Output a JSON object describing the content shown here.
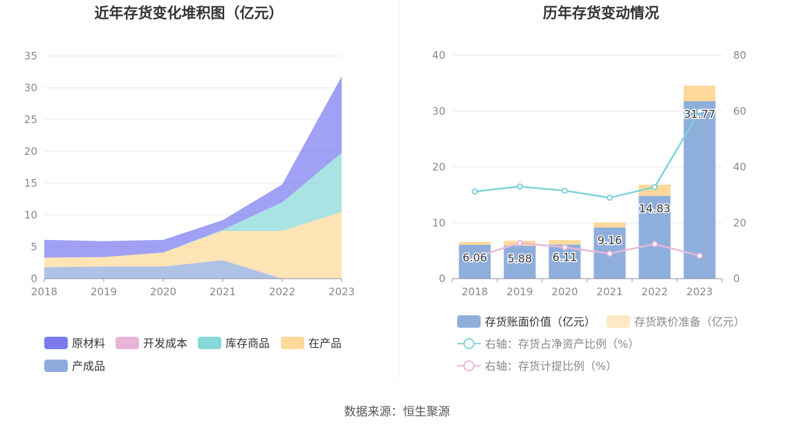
{
  "source_text": "数据来源：恒生聚源",
  "chart_data": [
    {
      "type": "area",
      "stacked": true,
      "title": "近年存货变化堆积图（亿元）",
      "x": [
        "2018",
        "2019",
        "2020",
        "2021",
        "2022",
        "2023"
      ],
      "ylim": [
        0,
        35
      ],
      "yticks": [
        "0",
        "5",
        "10",
        "15",
        "20",
        "25",
        "30",
        "35"
      ],
      "grid": true,
      "legend_position": "bottom",
      "series": [
        {
          "name": "产成品",
          "color": "#8faadc",
          "values": [
            1.8,
            1.9,
            1.9,
            2.9,
            0.0,
            0.0
          ]
        },
        {
          "name": "在产品",
          "color": "#ffd99a",
          "values": [
            1.5,
            1.5,
            2.2,
            4.6,
            7.5,
            10.5
          ]
        },
        {
          "name": "库存商品",
          "color": "#88d8d8",
          "values": [
            0.0,
            0.0,
            0.0,
            0.2,
            4.5,
            9.3
          ]
        },
        {
          "name": "开发成本",
          "color": "#e8b4d8",
          "values": [
            0.0,
            0.0,
            0.0,
            0.0,
            0.0,
            0.0
          ]
        },
        {
          "name": "原材料",
          "color": "#7b7bf0",
          "values": [
            2.8,
            2.5,
            2.0,
            1.5,
            2.8,
            12.0
          ]
        }
      ],
      "legend_order": [
        "原材料",
        "开发成本",
        "库存商品",
        "在产品",
        "产成品"
      ]
    },
    {
      "type": "bar",
      "title": "历年存货变动情况",
      "categories": [
        "2018",
        "2019",
        "2020",
        "2021",
        "2022",
        "2023"
      ],
      "ylim": [
        0,
        40
      ],
      "yticks": [
        "0",
        "10",
        "20",
        "30",
        "40"
      ],
      "y2lim": [
        0,
        80
      ],
      "y2ticks": [
        "0",
        "20",
        "40",
        "60",
        "80"
      ],
      "grid": true,
      "legend_position": "bottom",
      "series": [
        {
          "name": "存货账面价值（亿元）",
          "kind": "bar",
          "color": "#8eaedc",
          "values": [
            6.06,
            5.88,
            6.11,
            9.16,
            14.83,
            31.77
          ],
          "labels": [
            "6.06",
            "5.88",
            "6.11",
            "9.16",
            "14.83",
            "31.77"
          ]
        },
        {
          "name": "存货跌价准备（亿元）",
          "kind": "bar-stack",
          "color": "#ffd99a",
          "legend_color": "#fde7c4",
          "values": [
            0.5,
            0.9,
            0.8,
            0.9,
            2.0,
            2.8
          ]
        },
        {
          "name": "右轴：存货占净资产比例（%）",
          "kind": "line",
          "axis": "right",
          "color": "#7fd3d8",
          "values": [
            31.2,
            33.0,
            31.5,
            29.0,
            32.8,
            60.0
          ]
        },
        {
          "name": "右轴：存货计提比例（%）",
          "kind": "line",
          "axis": "right",
          "color": "#e9b7da",
          "values": [
            7.6,
            12.8,
            11.2,
            9.0,
            12.4,
            8.2
          ]
        }
      ]
    }
  ]
}
